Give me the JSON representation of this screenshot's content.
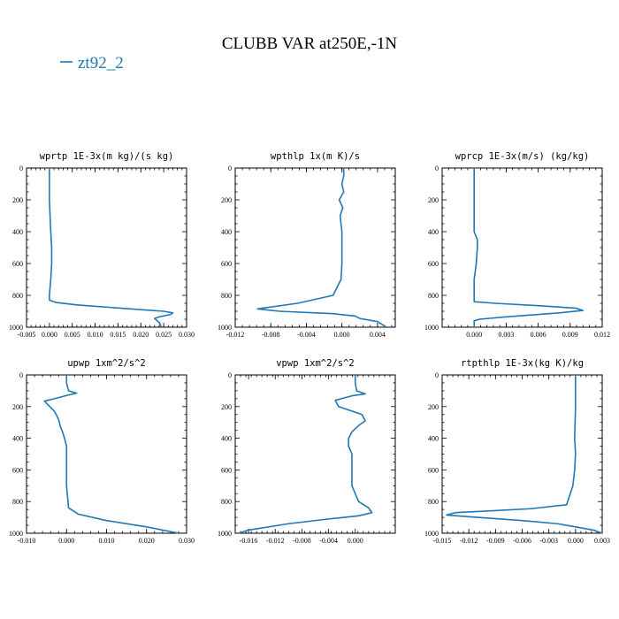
{
  "title": "CLUBB VAR at250E,-1N",
  "legend": {
    "label": "zt92_2",
    "color": "#1f77b4"
  },
  "chart_data": [
    {
      "type": "line",
      "title": "wprtp  1E-3x(m kg)/(s kg)",
      "xlim": [
        -0.005,
        0.03
      ],
      "ylim": [
        1000,
        0
      ],
      "xticks": [
        -0.005,
        0.0,
        0.005,
        0.01,
        0.015,
        0.02,
        0.025,
        0.03
      ],
      "xtick_labels": [
        "-0.005",
        "0.000",
        "0.005",
        "0.010",
        "0.015",
        "0.020",
        "0.025",
        "0.030"
      ],
      "yticks": [
        0,
        200,
        400,
        600,
        800,
        1000
      ],
      "ytick_labels": [
        "0",
        "200",
        "400",
        "600",
        "800",
        "1000"
      ],
      "series": [
        {
          "name": "zt92_2",
          "color": "#1f77b4",
          "x": [
            0.0,
            0.0,
            0.0003,
            0.0005,
            0.0005,
            0.0003,
            0.0,
            0.0,
            0.0015,
            0.006,
            0.013,
            0.02,
            0.025,
            0.027,
            0.0265,
            0.024,
            0.023,
            0.024,
            0.0245
          ],
          "y": [
            0,
            200,
            400,
            500,
            600,
            700,
            800,
            830,
            845,
            860,
            875,
            890,
            900,
            910,
            920,
            935,
            945,
            970,
            1000
          ]
        }
      ]
    },
    {
      "type": "line",
      "title": "wpthlp  1x(m K)/s",
      "xlim": [
        -0.012,
        0.006
      ],
      "ylim": [
        1000,
        0
      ],
      "xticks": [
        -0.012,
        -0.008,
        -0.004,
        0.0,
        0.004
      ],
      "xtick_labels": [
        "-0.012",
        "-0.008",
        "-0.004",
        "0.000",
        "0.004"
      ],
      "yticks": [
        0,
        200,
        400,
        600,
        800,
        1000
      ],
      "ytick_labels": [
        "0",
        "200",
        "400",
        "600",
        "800",
        "1000"
      ],
      "series": [
        {
          "name": "zt92_2",
          "color": "#1f77b4",
          "x": [
            0.0002,
            0.0002,
            0.0,
            0.0002,
            -0.0003,
            0.0001,
            -0.0002,
            0.0,
            0.0,
            0.0,
            -0.0001,
            -0.001,
            -0.005,
            -0.0095,
            -0.007,
            -0.001,
            0.0015,
            0.002,
            0.004,
            0.005
          ],
          "y": [
            0,
            50,
            100,
            150,
            200,
            250,
            300,
            400,
            500,
            600,
            700,
            800,
            850,
            885,
            900,
            915,
            930,
            945,
            965,
            1000
          ]
        }
      ]
    },
    {
      "type": "line",
      "title": "wprcp  1E-3x(m/s) (kg/kg)",
      "xlim": [
        -0.003,
        0.012
      ],
      "ylim": [
        1000,
        0
      ],
      "xticks": [
        0.0,
        0.003,
        0.006,
        0.009,
        0.012
      ],
      "xtick_labels": [
        "0.000",
        "0.003",
        "0.006",
        "0.009",
        "0.012"
      ],
      "yticks": [
        0,
        200,
        400,
        600,
        800,
        1000
      ],
      "ytick_labels": [
        "0",
        "200",
        "400",
        "600",
        "800",
        "1000"
      ],
      "series": [
        {
          "name": "zt92_2",
          "color": "#1f77b4",
          "x": [
            0.0,
            0.0,
            0.0,
            0.0003,
            0.0003,
            0.0002,
            0.0,
            0.0,
            0.0,
            0.002,
            0.006,
            0.0095,
            0.0102,
            0.008,
            0.003,
            0.0005,
            0.0,
            0.0
          ],
          "y": [
            0,
            200,
            400,
            450,
            500,
            600,
            700,
            800,
            840,
            850,
            865,
            880,
            895,
            910,
            935,
            950,
            960,
            1000
          ]
        }
      ]
    },
    {
      "type": "line",
      "title": "upwp  1xm^2/s^2",
      "xlim": [
        -0.01,
        0.03
      ],
      "ylim": [
        1000,
        0
      ],
      "xticks": [
        -0.01,
        0.0,
        0.01,
        0.02,
        0.03
      ],
      "xtick_labels": [
        "-0.010",
        "0.000",
        "0.010",
        "0.020",
        "0.030"
      ],
      "yticks": [
        0,
        200,
        400,
        600,
        800,
        1000
      ],
      "ytick_labels": [
        "0",
        "200",
        "400",
        "600",
        "800",
        "1000"
      ],
      "series": [
        {
          "name": "zt92_2",
          "color": "#1f77b4",
          "x": [
            0.0,
            0.0,
            0.0005,
            0.0025,
            0.0,
            -0.003,
            -0.0055,
            -0.005,
            -0.003,
            -0.002,
            -0.0015,
            -0.001,
            -0.0005,
            0.0,
            0.0,
            0.0,
            0.0005,
            0.003,
            0.01,
            0.02,
            0.028
          ],
          "y": [
            0,
            50,
            100,
            115,
            130,
            150,
            165,
            180,
            230,
            280,
            330,
            360,
            400,
            450,
            500,
            700,
            840,
            880,
            920,
            960,
            1000
          ]
        }
      ]
    },
    {
      "type": "line",
      "title": "vpwp  1xm^2/s^2",
      "xlim": [
        -0.018,
        0.006
      ],
      "ylim": [
        1000,
        0
      ],
      "xticks": [
        -0.016,
        -0.012,
        -0.008,
        -0.004,
        0.0
      ],
      "xtick_labels": [
        "-0.016",
        "-0.012",
        "-0.008",
        "-0.004",
        "0.000"
      ],
      "yticks": [
        0,
        200,
        400,
        600,
        800,
        1000
      ],
      "ytick_labels": [
        "0",
        "200",
        "400",
        "600",
        "800",
        "1000"
      ],
      "series": [
        {
          "name": "zt92_2",
          "color": "#1f77b4",
          "x": [
            0.0,
            0.0,
            0.0002,
            0.0015,
            -0.0003,
            -0.003,
            -0.0025,
            0.001,
            0.0015,
            0.0005,
            -0.0005,
            -0.001,
            -0.001,
            -0.0005,
            -0.0005,
            -0.0005,
            0.0005,
            0.002,
            0.0025,
            0.0005,
            -0.004,
            -0.01,
            -0.016,
            -0.0175
          ],
          "y": [
            0,
            50,
            100,
            120,
            130,
            160,
            200,
            250,
            290,
            320,
            360,
            400,
            450,
            500,
            600,
            700,
            800,
            840,
            870,
            890,
            910,
            940,
            980,
            1000
          ]
        }
      ]
    },
    {
      "type": "line",
      "title": "rtpthlp  1E-3x(kg K)/kg",
      "xlim": [
        -0.015,
        0.003
      ],
      "ylim": [
        1000,
        0
      ],
      "xticks": [
        -0.015,
        -0.012,
        -0.009,
        -0.006,
        -0.003,
        0.0,
        0.003
      ],
      "xtick_labels": [
        "-0.015",
        "-0.012",
        "-0.009",
        "-0.006",
        "-0.003",
        "0.000",
        "0.003"
      ],
      "yticks": [
        0,
        200,
        400,
        600,
        800,
        1000
      ],
      "ytick_labels": [
        "0",
        "200",
        "400",
        "600",
        "800",
        "1000"
      ],
      "series": [
        {
          "name": "zt92_2",
          "color": "#1f77b4",
          "x": [
            0.0,
            0.0,
            -0.0001,
            0.0,
            -0.0001,
            -0.0003,
            -0.001,
            -0.005,
            -0.01,
            -0.0135,
            -0.0145,
            -0.011,
            -0.006,
            -0.002,
            0.0,
            0.002,
            0.003
          ],
          "y": [
            0,
            200,
            400,
            500,
            600,
            700,
            820,
            845,
            860,
            870,
            885,
            900,
            920,
            940,
            960,
            980,
            1000
          ]
        }
      ]
    }
  ]
}
